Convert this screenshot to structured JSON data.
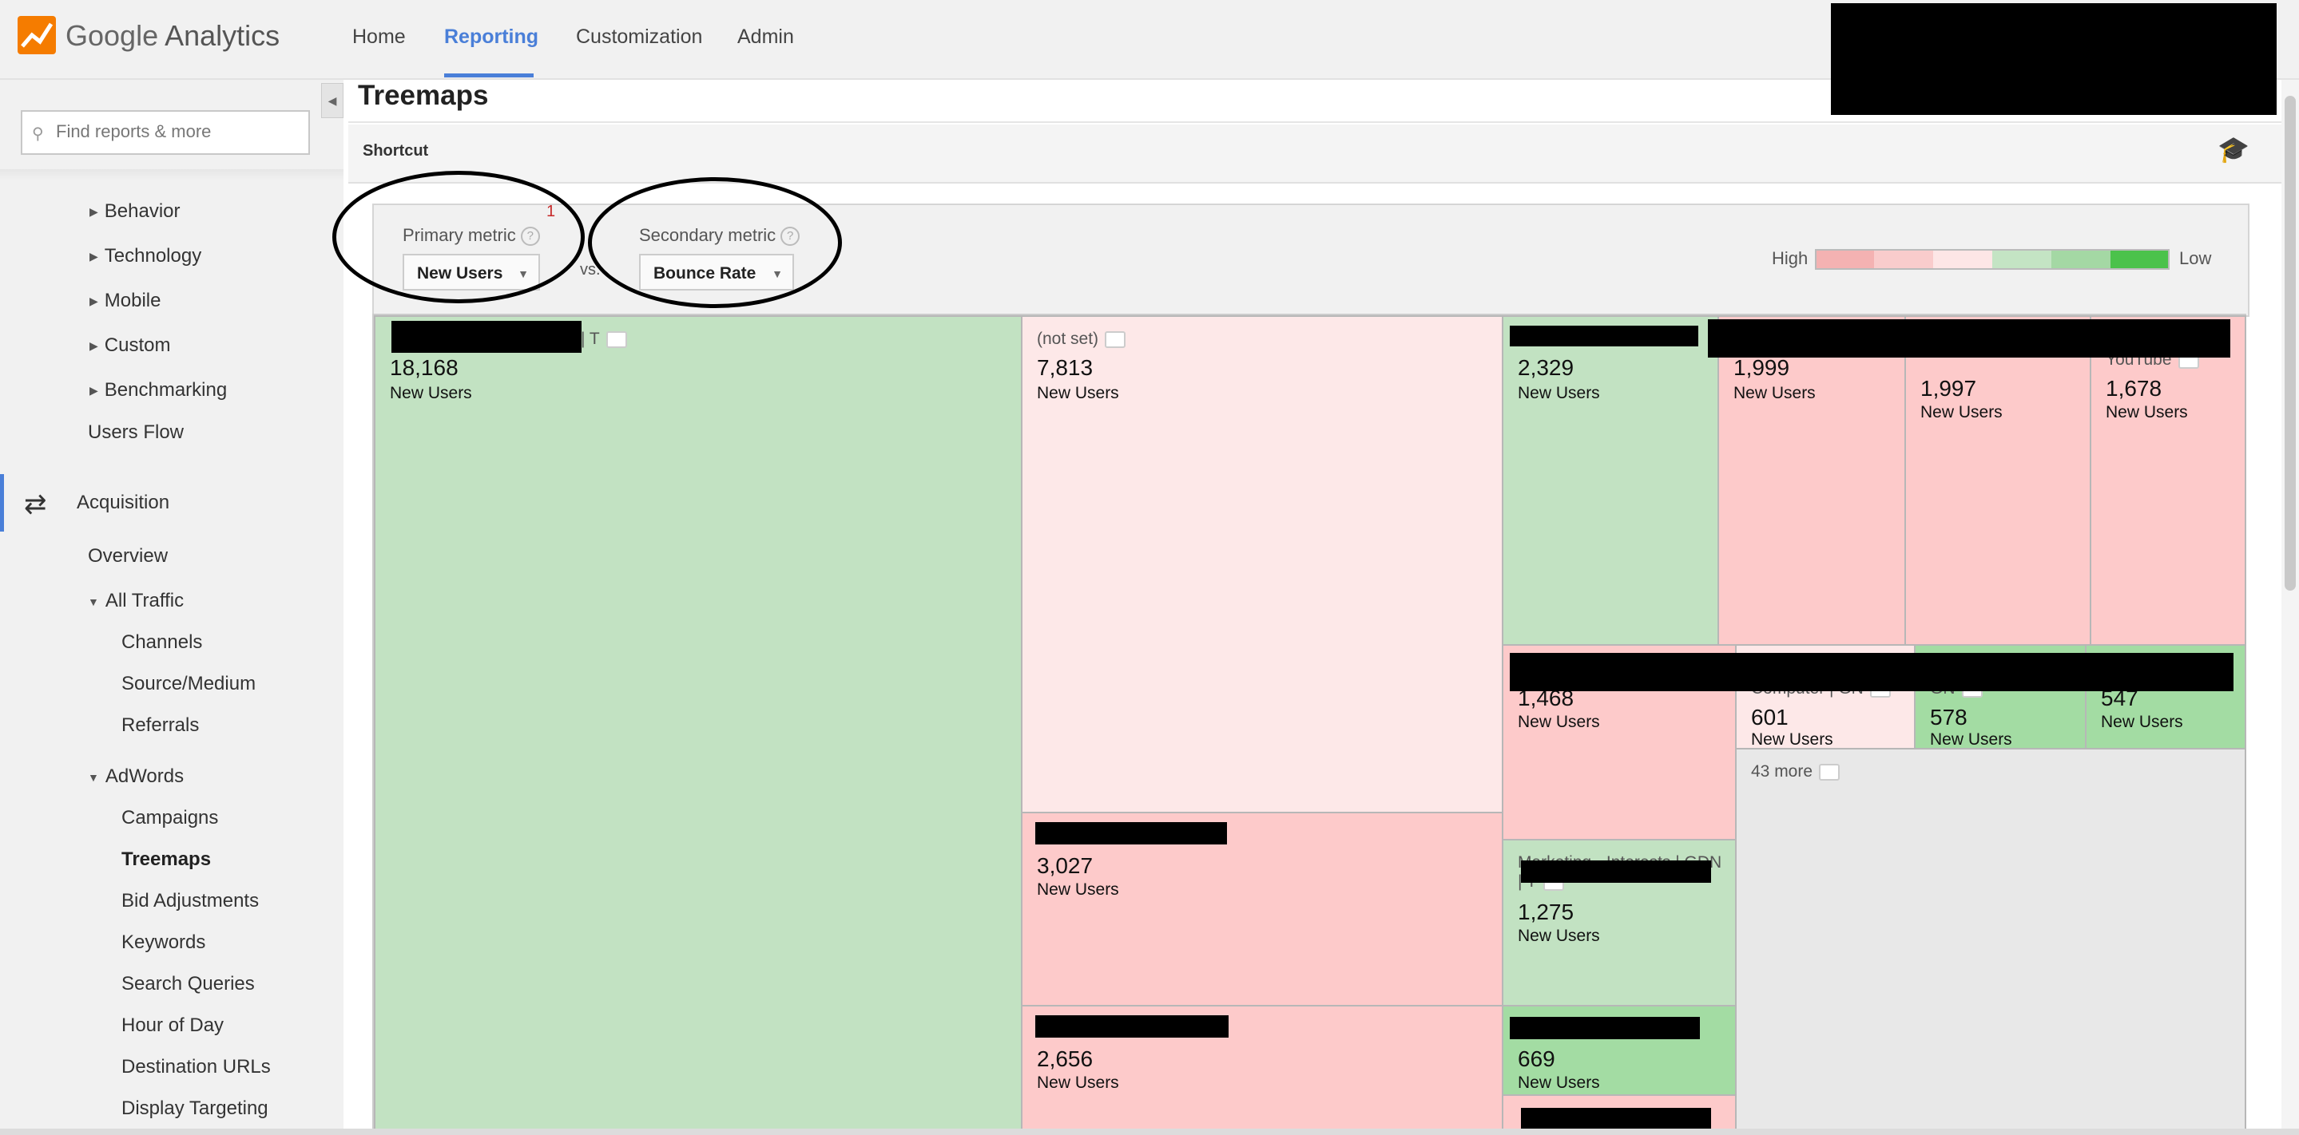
{
  "app": {
    "brand_google": "Google",
    "brand_product": "Analytics"
  },
  "nav": {
    "items": [
      {
        "label": "Home",
        "active": false
      },
      {
        "label": "Reporting",
        "active": true
      },
      {
        "label": "Customization",
        "active": false
      },
      {
        "label": "Admin",
        "active": false
      }
    ]
  },
  "sidebar": {
    "search_placeholder": "Find reports & more",
    "items": [
      {
        "label": "Behavior",
        "expander": "collapsed"
      },
      {
        "label": "Technology",
        "expander": "collapsed"
      },
      {
        "label": "Mobile",
        "expander": "collapsed"
      },
      {
        "label": "Custom",
        "expander": "collapsed"
      },
      {
        "label": "Benchmarking",
        "expander": "collapsed"
      },
      {
        "label": "Users Flow"
      },
      {
        "label": "Acquisition",
        "section": true
      },
      {
        "label": "Overview"
      },
      {
        "label": "All Traffic",
        "expander": "expanded"
      },
      {
        "label": "Channels"
      },
      {
        "label": "Source/Medium"
      },
      {
        "label": "Referrals"
      },
      {
        "label": "AdWords",
        "expander": "expanded"
      },
      {
        "label": "Campaigns"
      },
      {
        "label": "Treemaps",
        "selected": true
      },
      {
        "label": "Bid Adjustments"
      },
      {
        "label": "Keywords"
      },
      {
        "label": "Search Queries"
      },
      {
        "label": "Hour of Day"
      },
      {
        "label": "Destination URLs"
      },
      {
        "label": "Display Targeting"
      }
    ]
  },
  "main": {
    "title": "Treemaps",
    "shortcut": "Shortcut",
    "primary_metric": {
      "label": "Primary metric",
      "value": "New Users",
      "badge": "1"
    },
    "vs": "vs.",
    "secondary_metric": {
      "label": "Secondary metric",
      "value": "Bounce Rate"
    },
    "legend": {
      "high": "High",
      "low": "Low",
      "colors": [
        "#f4b2b2",
        "#f9cccc",
        "#fde6e6",
        "#c4e4c4",
        "#a4d8a4",
        "#4bc24b"
      ]
    }
  },
  "treemap": {
    "tiles": [
      {
        "name": "N | T",
        "value": "18,168",
        "unit": "New Users",
        "color": "green"
      },
      {
        "name": "(not set)",
        "value": "7,813",
        "unit": "New Users",
        "color": "pink"
      },
      {
        "name": "",
        "value": "2,329",
        "unit": "New Users",
        "color": "green"
      },
      {
        "name": "",
        "value": "1,999",
        "unit": "New Users",
        "color": "red"
      },
      {
        "name": "",
        "value": "1,997",
        "unit": "New Users",
        "color": "red"
      },
      {
        "name": "YouTube",
        "value": "1,678",
        "unit": "New Users",
        "color": "red"
      },
      {
        "name": "",
        "value": "1,468",
        "unit": "New Users",
        "color": "red"
      },
      {
        "name": "Computer | GN",
        "value": "601",
        "unit": "New Users",
        "color": "pink"
      },
      {
        "name": "GN",
        "value": "578",
        "unit": "New Users",
        "color": "dgreen"
      },
      {
        "name": "",
        "value": "547",
        "unit": "New Users",
        "color": "dgreen"
      },
      {
        "name": "",
        "value": "3,027",
        "unit": "New Users",
        "color": "red"
      },
      {
        "name": "Marketing - Interests | GDN | T",
        "value": "1,275",
        "unit": "New Users",
        "color": "green"
      },
      {
        "name": "",
        "value": "2,656",
        "unit": "New Users",
        "color": "red"
      },
      {
        "name": "",
        "value": "669",
        "unit": "New Users",
        "color": "dgreen"
      }
    ],
    "more": "43 more"
  }
}
